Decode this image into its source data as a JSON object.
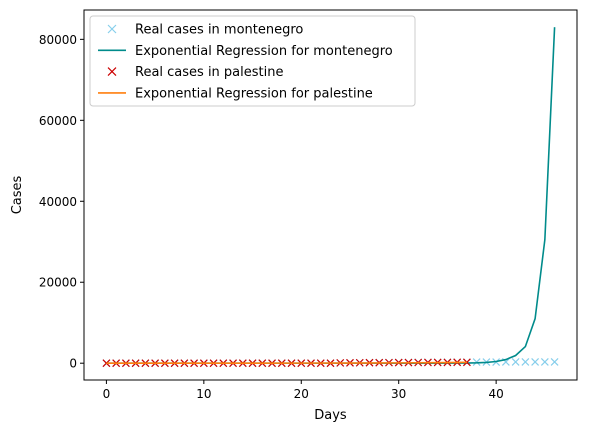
{
  "chart_data": {
    "type": "line",
    "xlabel": "Days",
    "ylabel": "Cases",
    "xlim": [
      -2.3,
      48.3
    ],
    "ylim": [
      -4150,
      87250
    ],
    "x_ticks": [
      0,
      10,
      20,
      30,
      40
    ],
    "y_ticks": [
      0,
      20000,
      40000,
      60000,
      80000
    ],
    "x_tick_labels": [
      "0",
      "10",
      "20",
      "30",
      "40"
    ],
    "y_tick_labels": [
      "0",
      "20000",
      "40000",
      "60000",
      "80000"
    ],
    "grid": false,
    "legend_position": "top-left",
    "series": [
      {
        "name": "Real cases in montenegro",
        "style": "marker-x",
        "color": "#87ceeb",
        "x": [
          0,
          1,
          2,
          3,
          4,
          5,
          6,
          7,
          8,
          9,
          10,
          11,
          12,
          13,
          14,
          15,
          16,
          17,
          18,
          19,
          20,
          21,
          22,
          23,
          24,
          25,
          26,
          27,
          28,
          29,
          30,
          31,
          32,
          33,
          34,
          35,
          36,
          37,
          38,
          39,
          40,
          41,
          42,
          43,
          44,
          45,
          46
        ],
        "y": [
          0,
          0,
          0,
          0,
          0,
          0,
          0,
          0,
          0,
          0,
          0,
          0,
          0,
          0,
          0,
          0,
          0,
          0,
          0,
          0,
          0,
          0,
          0,
          0,
          50,
          80,
          100,
          120,
          150,
          170,
          190,
          200,
          210,
          220,
          230,
          240,
          250,
          260,
          270,
          280,
          290,
          300,
          310,
          315,
          320,
          320,
          320
        ]
      },
      {
        "name": "Exponential Regression for montenegro",
        "style": "line",
        "color": "#008b8b",
        "x": [
          0,
          5,
          10,
          15,
          20,
          25,
          30,
          35,
          37,
          38,
          39,
          40,
          41,
          42,
          43,
          44,
          45,
          46
        ],
        "y": [
          0,
          0,
          0,
          0,
          0,
          0,
          0,
          5,
          40,
          90,
          200,
          420,
          900,
          1900,
          4100,
          11000,
          30500,
          83000
        ]
      },
      {
        "name": "Real cases in palestine",
        "style": "marker-x",
        "color": "#cc0000",
        "x": [
          0,
          1,
          2,
          3,
          4,
          5,
          6,
          7,
          8,
          9,
          10,
          11,
          12,
          13,
          14,
          15,
          16,
          17,
          18,
          19,
          20,
          21,
          22,
          23,
          24,
          25,
          26,
          27,
          28,
          29,
          30,
          31,
          32,
          33,
          34,
          35,
          36,
          37
        ],
        "y": [
          0,
          0,
          0,
          0,
          0,
          0,
          0,
          0,
          0,
          0,
          0,
          0,
          0,
          0,
          0,
          0,
          0,
          0,
          0,
          0,
          0,
          0,
          0,
          0,
          80,
          100,
          110,
          120,
          130,
          140,
          150,
          160,
          170,
          180,
          190,
          200,
          210,
          220
        ]
      },
      {
        "name": "Exponential Regression for palestine",
        "style": "line",
        "color": "#ff7f0e",
        "x": [
          0,
          5,
          10,
          15,
          20,
          25,
          30,
          35,
          37
        ],
        "y": [
          0,
          2,
          5,
          10,
          20,
          40,
          80,
          150,
          210
        ]
      }
    ]
  }
}
